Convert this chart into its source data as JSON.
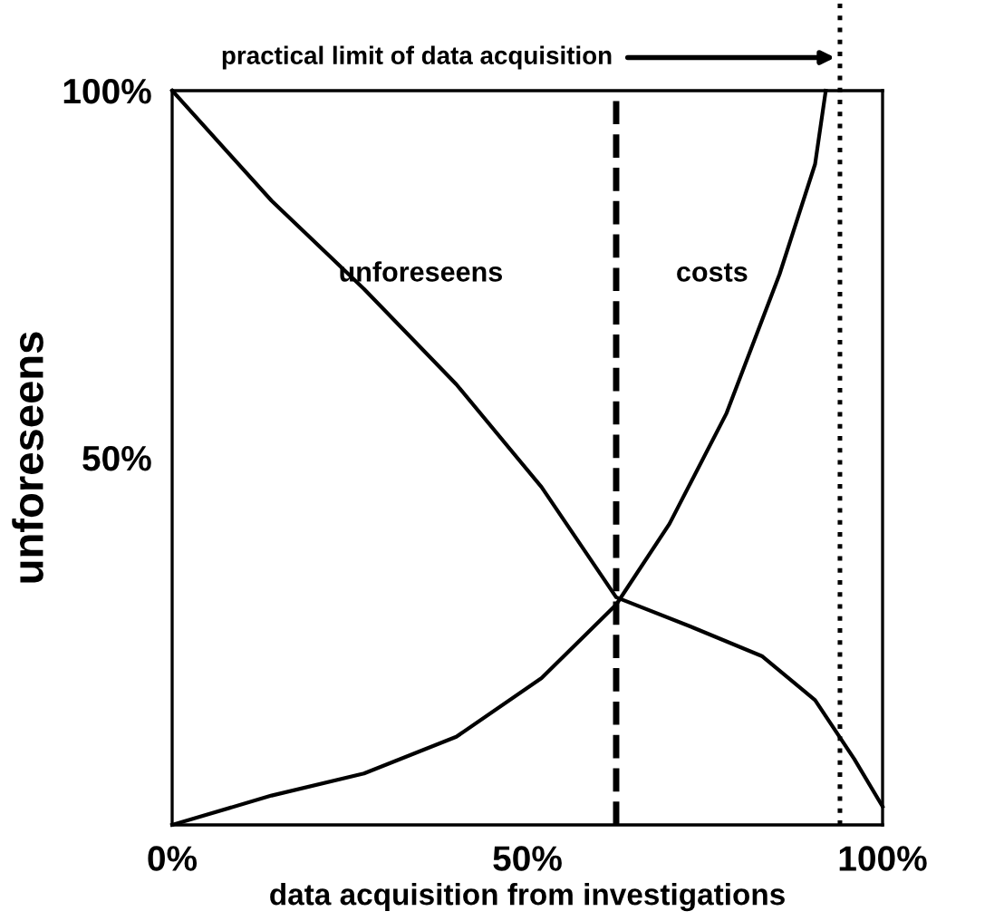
{
  "chart_data": {
    "type": "line",
    "xlabel": "data acquisition from investigations",
    "ylabel": "unforeseens",
    "series": [
      {
        "name": "unforeseens",
        "color": "#000000",
        "x": [
          0,
          14,
          27,
          40,
          52,
          62.5,
          73,
          83,
          90.5,
          96,
          100
        ],
        "values": [
          100,
          85,
          73,
          60,
          46,
          31,
          27,
          23,
          17,
          9,
          2.5
        ]
      },
      {
        "name": "costs",
        "color": "#000000",
        "x": [
          0,
          14,
          27,
          40,
          52,
          62.5,
          70,
          78,
          85.5,
          90.5,
          92
        ],
        "values": [
          0,
          4,
          7,
          12,
          20,
          30,
          41,
          56,
          75,
          90,
          100
        ]
      }
    ],
    "xlim": [
      0,
      100
    ],
    "ylim": [
      0,
      100
    ],
    "xticks": [
      {
        "value": 0,
        "label": "0%"
      },
      {
        "value": 50,
        "label": "50%"
      },
      {
        "value": 100,
        "label": "100%"
      }
    ],
    "yticks": [
      {
        "value": 50,
        "label": "50%"
      },
      {
        "value": 100,
        "label": "100%"
      }
    ],
    "ref_lines": [
      {
        "axis": "x",
        "value": 62.5,
        "line_style": "dashed",
        "color": "#000000"
      },
      {
        "axis": "x",
        "value": 94,
        "line_style": "dotted",
        "color": "#000000",
        "label": "practical limit of data acquisition"
      }
    ],
    "grid": false,
    "legend": false,
    "marker": "none",
    "line_style": "solid"
  }
}
